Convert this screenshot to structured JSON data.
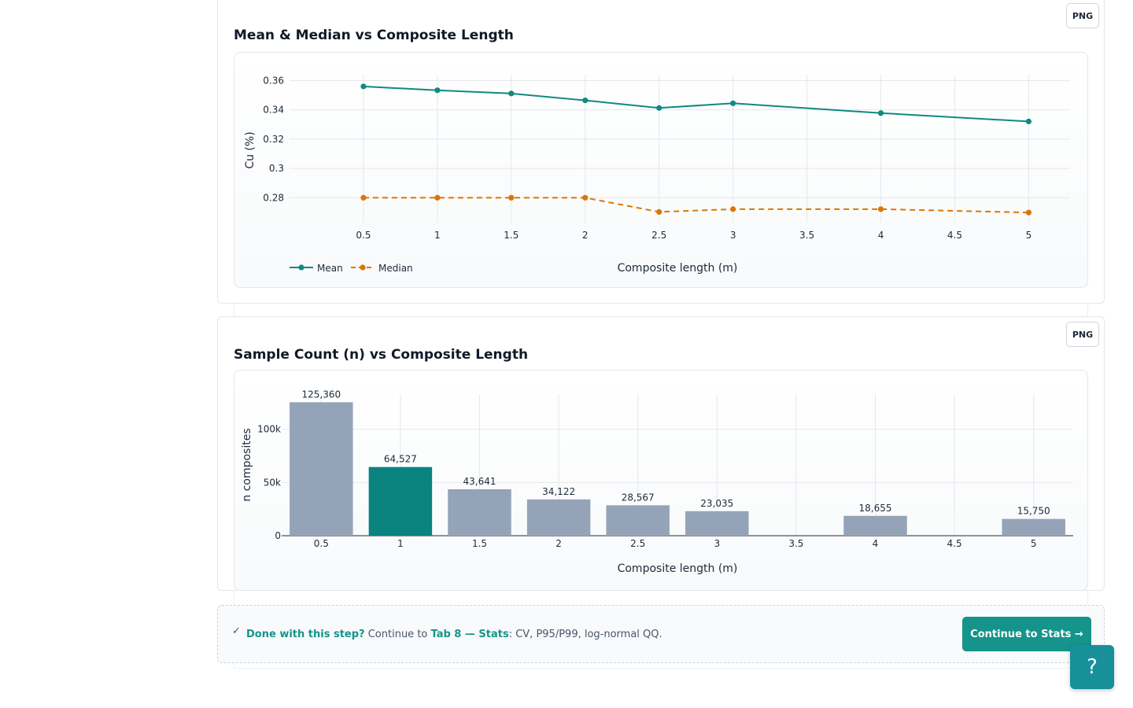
{
  "charts": [
    {
      "title": "Mean & Median vs Composite Length",
      "export_label": "PNG"
    },
    {
      "title": "Sample Count (n) vs Composite Length",
      "export_label": "PNG"
    }
  ],
  "chart_data": [
    {
      "type": "line",
      "title": "Mean & Median vs Composite Length",
      "xlabel": "Composite length (m)",
      "ylabel": "Cu (%)",
      "x_ticks": [
        "0.5",
        "1",
        "1.5",
        "2",
        "2.5",
        "3",
        "3.5",
        "4",
        "4.5",
        "5"
      ],
      "y_ticks": [
        "0.36",
        "0.34",
        "0.32",
        "0.3",
        "0.28"
      ],
      "ylim": [
        0.263,
        0.364
      ],
      "xlim": [
        0.0,
        5.28
      ],
      "grid": true,
      "legend_position": "bottom-left",
      "series": [
        {
          "name": "Mean",
          "color": "#0f8a80",
          "style": "solid",
          "x": [
            0.5,
            1,
            1.5,
            2,
            2.5,
            3,
            4,
            5
          ],
          "y": [
            0.356,
            0.3534,
            0.3512,
            0.3465,
            0.3413,
            0.3445,
            0.3378,
            0.3321
          ]
        },
        {
          "name": "Median",
          "color": "#d97706",
          "style": "dashed",
          "x": [
            0.5,
            1,
            1.5,
            2,
            2.5,
            3,
            4,
            5
          ],
          "y": [
            0.28,
            0.28,
            0.28,
            0.28,
            0.2703,
            0.2722,
            0.2722,
            0.2699
          ]
        }
      ]
    },
    {
      "type": "bar",
      "title": "Sample Count (n) vs Composite Length",
      "xlabel": "Composite length (m)",
      "ylabel": "n composites",
      "categories": [
        "0.5",
        "1",
        "1.5",
        "2",
        "2.5",
        "3",
        "3.5",
        "4",
        "4.5",
        "5"
      ],
      "values": [
        125360,
        64527,
        43641,
        34122,
        28567,
        23035,
        null,
        18655,
        null,
        15750
      ],
      "labels": [
        "125,360",
        "64,527",
        "43,641",
        "34,122",
        "28,567",
        "23,035",
        "",
        "18,655",
        "",
        "15,750"
      ],
      "y_ticks": [
        "100k",
        "50k",
        "0"
      ],
      "y_tick_values": [
        100000,
        50000,
        0
      ],
      "ylim": [
        0,
        133000
      ],
      "highlight_category": "1",
      "bar_color": "#94a3b8",
      "highlight_color": "#0b837f",
      "grid": true
    }
  ],
  "footer": {
    "check_icon": "check-icon",
    "done_label": "Done with this step?",
    "continue_text": " Continue to ",
    "tab_label": "Tab 8 — Stats",
    "rest_text": ": CV, P95/P99, log-normal QQ.",
    "button_label": "Continue to Stats →"
  },
  "help_label": "?"
}
